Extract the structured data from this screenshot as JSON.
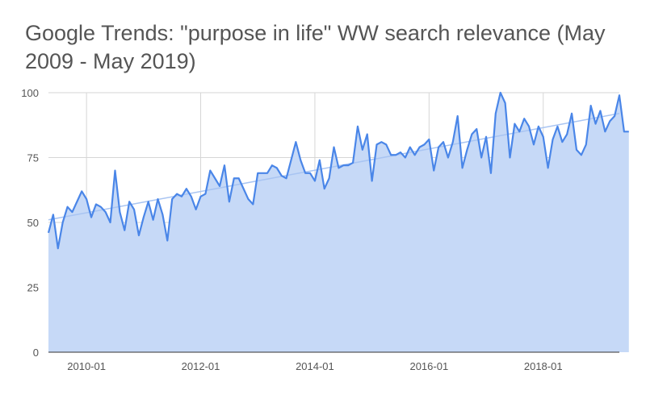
{
  "chart_data": {
    "type": "area",
    "title": "Google Trends: \"purpose in life\" WW search relevance (May 2009 - May 2019)",
    "xlabel": "",
    "ylabel": "",
    "x_range": [
      "2009-05",
      "2019-05"
    ],
    "ylim": [
      0,
      100
    ],
    "y_ticks": [
      0,
      25,
      50,
      75,
      100
    ],
    "x_ticks": [
      "2010-01",
      "2012-01",
      "2014-01",
      "2016-01",
      "2018-01"
    ],
    "grid": true,
    "legend": "none",
    "colors": {
      "line": "#4a86e8",
      "area": "#c6d9f7",
      "trend": "#a8c4f2",
      "grid": "#d6d6d6",
      "axis": "#333333"
    },
    "series": [
      {
        "start": "2009-05",
        "frequency": "monthly",
        "values": [
          46,
          53,
          40,
          50,
          56,
          54,
          58,
          62,
          59,
          52,
          57,
          56,
          54,
          50,
          70,
          54,
          47,
          58,
          55,
          45,
          52,
          58,
          51,
          59,
          53,
          43,
          59,
          61,
          60,
          63,
          60,
          55,
          60,
          61,
          70,
          67,
          64,
          72,
          58,
          67,
          67,
          63,
          59,
          57,
          69,
          69,
          69,
          72,
          71,
          68,
          67,
          74,
          81,
          74,
          69,
          69,
          66,
          74,
          63,
          67,
          79,
          71,
          72,
          72,
          73,
          87,
          78,
          84,
          66,
          80,
          81,
          80,
          76,
          76,
          77,
          75,
          79,
          76,
          79,
          80,
          82,
          70,
          79,
          81,
          75,
          81,
          91,
          71,
          78,
          84,
          86,
          75,
          83,
          69,
          92,
          100,
          96,
          75,
          88,
          85,
          90,
          87,
          80,
          87,
          83,
          71,
          82,
          87,
          81,
          84,
          92,
          78,
          76,
          80,
          95,
          88,
          93,
          85,
          89,
          91,
          99,
          85,
          85
        ]
      },
      {
        "type": "trendline",
        "start": "2009-05",
        "end": "2019-05",
        "values": [
          51,
          92
        ]
      }
    ]
  }
}
